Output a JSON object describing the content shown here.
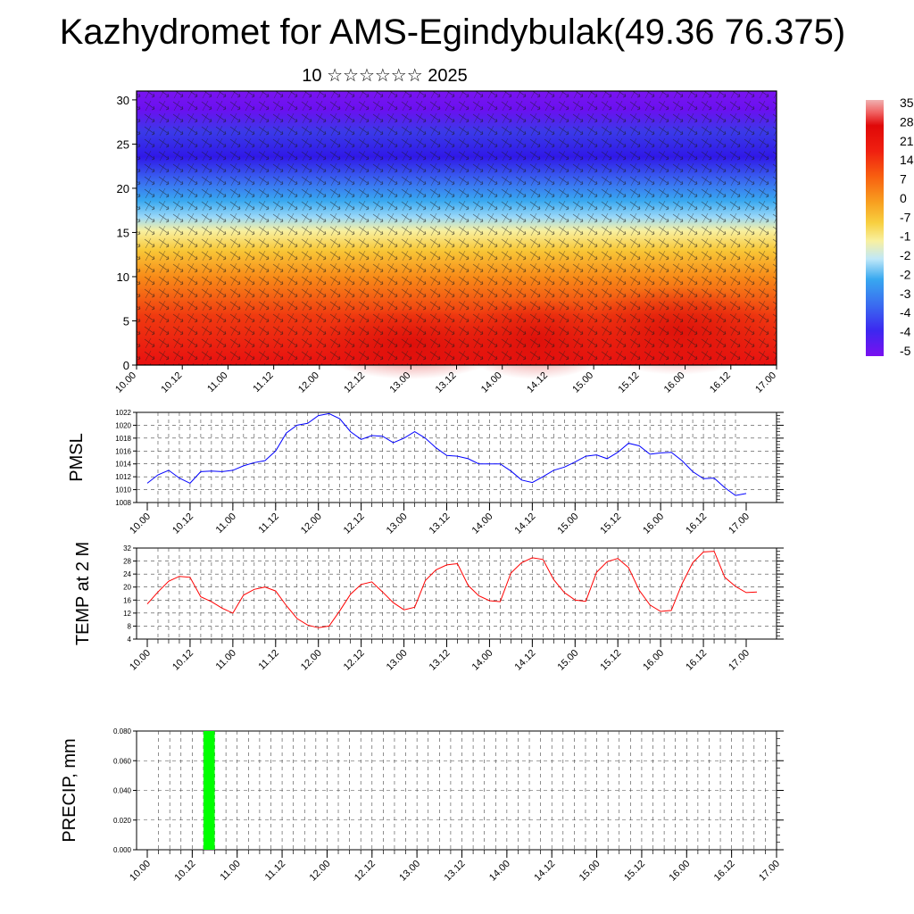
{
  "title": "Kazhydromet for AMS-Egindybulak(49.36 76.375)",
  "subtitle": "10 ☆☆☆☆☆☆ 2025",
  "chart_data": [
    {
      "type": "heatmap",
      "title": "",
      "xlabel": "",
      "ylabel": "",
      "ylim": [
        0,
        31
      ],
      "yticks": [
        "0",
        "5",
        "10",
        "15",
        "20",
        "25",
        "30"
      ],
      "xtick_labels": [
        "10.00",
        "10.12",
        "11.00",
        "11.12",
        "12.00",
        "12.12",
        "13.00",
        "13.12",
        "14.00",
        "14.12",
        "15.00",
        "15.12",
        "16.00",
        "16.12",
        "17.00"
      ],
      "colorbar_labels": [
        "35",
        "28",
        "21",
        "14",
        "7",
        "0",
        "-7",
        "-1",
        "-2",
        "-2",
        "-3",
        "-4",
        "-4",
        "-5"
      ],
      "colors": [
        "#7a10f0",
        "#3c28f0",
        "#3a6cf0",
        "#38a8f0",
        "#9ad8f8",
        "#f8f0a0",
        "#f8d040",
        "#f8a020",
        "#f86010",
        "#f02010",
        "#e00808",
        "#f06060",
        "#f0b0b0"
      ]
    },
    {
      "type": "line",
      "ylabel": "PMSL",
      "ylim": [
        1008,
        1022
      ],
      "yticks": [
        "1008",
        "1010",
        "1012",
        "1014",
        "1016",
        "1018",
        "1020",
        "1022"
      ],
      "xtick_labels": [
        "10.00",
        "10.12",
        "11.00",
        "11.12",
        "12.00",
        "12.12",
        "13.00",
        "13.12",
        "14.00",
        "14.12",
        "15.00",
        "15.12",
        "16.00",
        "16.12",
        "17.00"
      ],
      "series": [
        {
          "color": "#0000ff",
          "values": [
            1011.0,
            1012.3,
            1013.0,
            1011.8,
            1011.0,
            1012.8,
            1012.9,
            1012.8,
            1013.0,
            1013.7,
            1014.2,
            1014.5,
            1016.0,
            1018.8,
            1020.0,
            1020.3,
            1021.5,
            1021.8,
            1021.0,
            1019.0,
            1017.8,
            1018.4,
            1018.3,
            1017.3,
            1018.0,
            1019.0,
            1018.0,
            1016.5,
            1015.3,
            1015.2,
            1014.8,
            1014.0,
            1014.0,
            1014.0,
            1012.9,
            1011.5,
            1011.1,
            1012.0,
            1013.0,
            1013.5,
            1014.3,
            1015.2,
            1015.4,
            1014.8,
            1015.8,
            1017.2,
            1016.8,
            1015.5,
            1015.7,
            1015.8,
            1014.5,
            1012.8,
            1011.7,
            1011.8,
            1010.3,
            1009.1,
            1009.4
          ]
        }
      ]
    },
    {
      "type": "line",
      "ylabel": "TEMP at 2 M",
      "ylim": [
        4,
        32
      ],
      "yticks": [
        "4",
        "8",
        "12",
        "16",
        "20",
        "24",
        "28",
        "32"
      ],
      "xtick_labels": [
        "10.00",
        "10.12",
        "11.00",
        "11.12",
        "12.00",
        "12.12",
        "13.00",
        "13.12",
        "14.00",
        "14.12",
        "15.00",
        "15.12",
        "16.00",
        "16.12",
        "17.00"
      ],
      "series": [
        {
          "color": "#ff0000",
          "values": [
            14.8,
            18.5,
            21.8,
            23.3,
            23.0,
            17.0,
            15.5,
            13.5,
            12.0,
            17.5,
            19.3,
            20.0,
            18.8,
            14.3,
            10.3,
            8.3,
            7.5,
            8.0,
            12.7,
            17.8,
            20.8,
            21.6,
            18.5,
            15.2,
            13.0,
            13.8,
            22.0,
            25.3,
            26.8,
            27.2,
            20.5,
            17.3,
            15.8,
            15.5,
            24.3,
            27.5,
            29.0,
            28.5,
            22.3,
            18.3,
            16.0,
            15.6,
            24.5,
            27.8,
            28.8,
            26.0,
            19.0,
            14.5,
            12.5,
            12.8,
            21.0,
            27.5,
            30.8,
            31.0,
            23.0,
            20.2,
            18.3,
            18.5
          ]
        }
      ]
    },
    {
      "type": "bar",
      "ylabel": "PRECIP, mm",
      "ylim": [
        0,
        0.08
      ],
      "yticks": [
        "0.000",
        "0.020",
        "0.040",
        "0.060",
        "0.080"
      ],
      "xtick_labels": [
        "10.00",
        "10.12",
        "11.00",
        "11.12",
        "12.00",
        "12.12",
        "13.00",
        "13.12",
        "14.00",
        "14.12",
        "15.00",
        "15.12",
        "16.00",
        "16.12",
        "17.00"
      ],
      "series": [
        {
          "color": "#00ff00",
          "bars": [
            {
              "x": 5.5,
              "value": 0.08
            }
          ]
        }
      ]
    }
  ]
}
